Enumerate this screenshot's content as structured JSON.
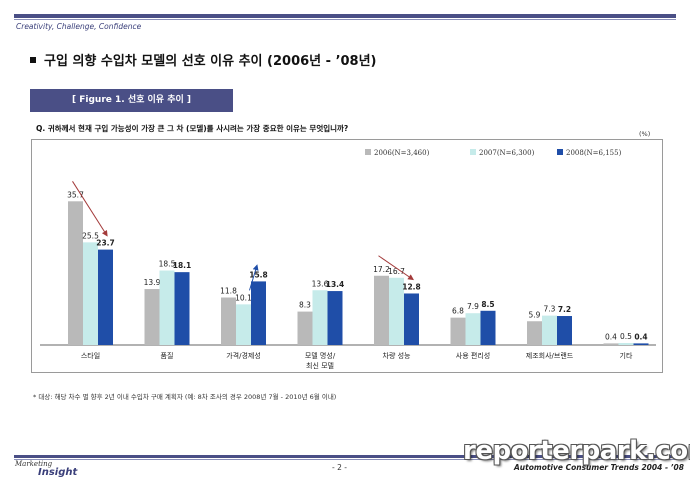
{
  "header": {
    "tagline": "Creativity, Challenge, Confidence"
  },
  "section_title": "구입 의향 수입차 모델의 선호 이유 추이 (2006년 - ’08년)",
  "figure_label": "[ Figure 1. 선호 이유 추이 ]",
  "question": "Q. 귀하께서 현재 구입 가능성이 가장 큰 그 차 (모델)를 사시려는 가장 중요한 이유는 무엇입니까?",
  "unit": "(%)",
  "chart_data": {
    "type": "bar",
    "categories": [
      "스타일",
      "품질",
      "가격/경제성",
      "모델 명성/\n최신 모델",
      "차량 성능",
      "사용 편리성",
      "제조회사/브랜드",
      "기타"
    ],
    "series": [
      {
        "name": "2006(N=3,460)",
        "color": "#b9b9b9",
        "values": [
          35.7,
          13.9,
          11.8,
          8.3,
          17.2,
          6.8,
          5.9,
          0.4
        ]
      },
      {
        "name": "2007(N=6,300)",
        "color": "#c6ebea",
        "values": [
          25.5,
          18.5,
          10.1,
          13.6,
          16.7,
          7.9,
          7.3,
          0.5
        ]
      },
      {
        "name": "2008(N=6,155)",
        "color": "#1f4ea8",
        "values": [
          23.7,
          18.1,
          15.8,
          13.4,
          12.8,
          8.5,
          7.2,
          0.4
        ]
      }
    ],
    "value_labels": [
      [
        "35.7",
        "13.9",
        "11.8",
        "8.3",
        "17.2",
        "6.8",
        "5.9",
        "0.4"
      ],
      [
        "25.5",
        "18.5",
        "10.1",
        "13.6",
        "16.7",
        "7.9",
        "7.3",
        "0.5"
      ],
      [
        "23.7",
        "18.1",
        "15.8",
        "13.4",
        "12.8",
        "8.5",
        "7.2",
        "0.4"
      ]
    ],
    "ylim": [
      0,
      40
    ],
    "legend": "top-right",
    "grid": false,
    "trend_arrows": [
      {
        "category_index": 0,
        "direction": "down",
        "color": "#a33a3a"
      },
      {
        "category_index": 2,
        "direction": "up",
        "color": "#1f4ea8"
      },
      {
        "category_index": 4,
        "direction": "down",
        "color": "#a33a3a"
      }
    ]
  },
  "footnote": "* 대상: 해당 차수 별 향후 2년 이내 수입차 구매 계획자 (예: 8차 조사의 경우 2008년 7월 - 2010년 6월 이내)",
  "footer": {
    "logo_small": "Marketing",
    "logo_big": "Insight",
    "page_number": "- 2 -",
    "right_text": "Automotive Consumer Trends 2004 - ’08",
    "watermark": "reporterpark.com"
  }
}
